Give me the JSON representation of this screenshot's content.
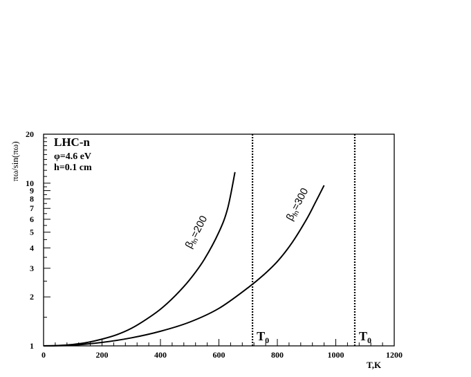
{
  "chart_data": {
    "type": "line",
    "xlabel": "T,K",
    "ylabel": "πω/sin(πω)",
    "xlim": [
      0,
      1200
    ],
    "ylim": [
      1,
      20
    ],
    "yscale": "log",
    "xticks": [
      0,
      200,
      400,
      600,
      800,
      1000,
      1200
    ],
    "yticks": [
      1,
      2,
      3,
      4,
      5,
      6,
      7,
      8,
      9,
      10,
      20
    ],
    "grid": false,
    "annotations": {
      "title": "LHC-n",
      "line1": "φ=4.6 eV",
      "line2": "h=0.1 cm"
    },
    "series": [
      {
        "name": "β_fn=200",
        "label_main": "β",
        "label_sub": "fn",
        "label_rest": "=200",
        "x": [
          0,
          50,
          100,
          150,
          200,
          250,
          300,
          350,
          400,
          450,
          500,
          550,
          600,
          630,
          655
        ],
        "y": [
          1.0,
          1.005,
          1.02,
          1.05,
          1.1,
          1.17,
          1.28,
          1.45,
          1.68,
          2.03,
          2.55,
          3.4,
          5.0,
          7.0,
          11.7
        ]
      },
      {
        "name": "β_fn=300",
        "label_main": "β",
        "label_sub": "fn",
        "label_rest": "=300",
        "x": [
          0,
          50,
          100,
          200,
          300,
          400,
          500,
          600,
          700,
          750,
          800,
          850,
          900,
          930,
          960
        ],
        "y": [
          1.0,
          1.003,
          1.01,
          1.05,
          1.12,
          1.23,
          1.4,
          1.7,
          2.28,
          2.7,
          3.3,
          4.3,
          6.0,
          7.6,
          9.7
        ]
      }
    ],
    "vlines": [
      {
        "x": 715,
        "label_main": "T",
        "label_sub": "0",
        "style": "dotted"
      },
      {
        "x": 1065,
        "label_main": "T",
        "label_sub": "0",
        "style": "dotted"
      }
    ]
  }
}
